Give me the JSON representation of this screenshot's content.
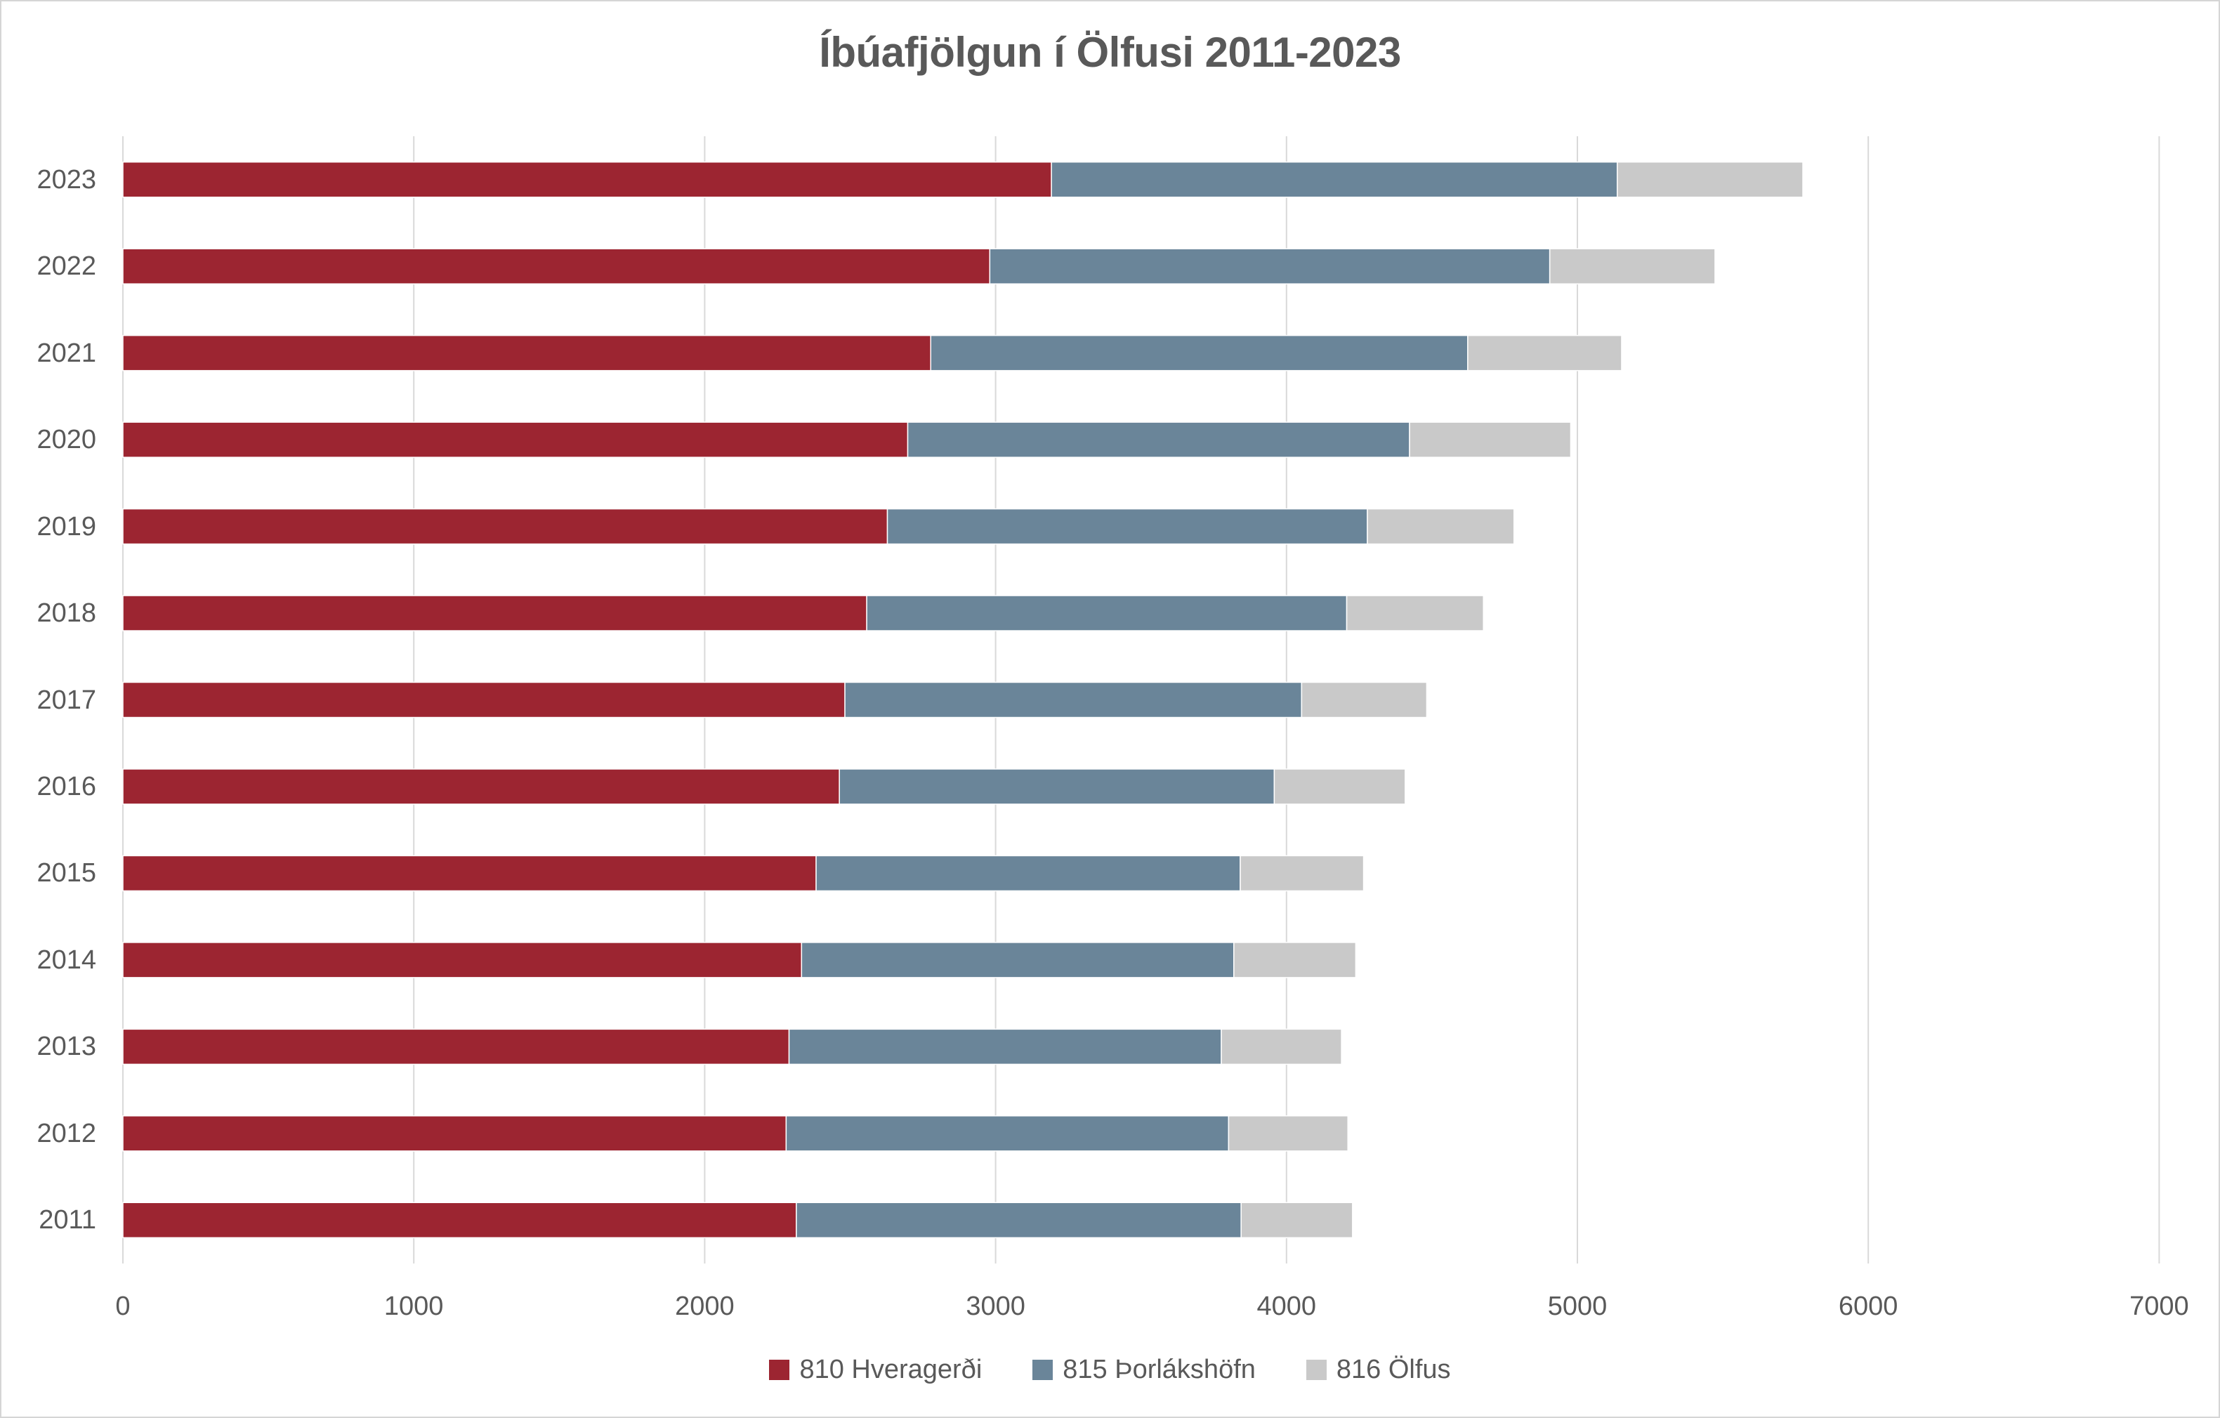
{
  "chart_data": {
    "type": "bar",
    "orientation": "horizontal",
    "stacked": true,
    "title": "Íbúafjölgun í Ölfusi 2011-2023",
    "categories": [
      "2023",
      "2022",
      "2021",
      "2020",
      "2019",
      "2018",
      "2017",
      "2016",
      "2015",
      "2014",
      "2013",
      "2012",
      "2011"
    ],
    "series": [
      {
        "name": "810 Hveragerði",
        "color": "#9C2531",
        "values": [
          3192,
          2980,
          2777,
          2698,
          2628,
          2557,
          2482,
          2463,
          2383,
          2333,
          2290,
          2280,
          2315
        ]
      },
      {
        "name": "815 Þorlákshöfn",
        "color": "#6A8599",
        "values": [
          1945,
          1925,
          1846,
          1725,
          1650,
          1650,
          1570,
          1495,
          1458,
          1486,
          1486,
          1521,
          1529
        ]
      },
      {
        "name": "816 Ölfus",
        "color": "#C9C9C9",
        "values": [
          638,
          568,
          529,
          554,
          504,
          470,
          430,
          450,
          424,
          419,
          413,
          410,
          383
        ]
      }
    ],
    "totals": [
      5775,
      5473,
      5152,
      4977,
      4782,
      4677,
      4482,
      4408,
      4265,
      4238,
      4189,
      4211,
      4227
    ],
    "x_axis": {
      "min": 0,
      "max": 7000,
      "tick_interval": 1000,
      "tick_labels": [
        "0",
        "1000",
        "2000",
        "3000",
        "4000",
        "5000",
        "6000",
        "7000"
      ]
    },
    "grid": true,
    "legend_position": "bottom",
    "colors": {
      "text": "#595959",
      "gridline": "#D9D9D9",
      "background": "#FFFFFF",
      "border": "#D5D5D5"
    }
  }
}
